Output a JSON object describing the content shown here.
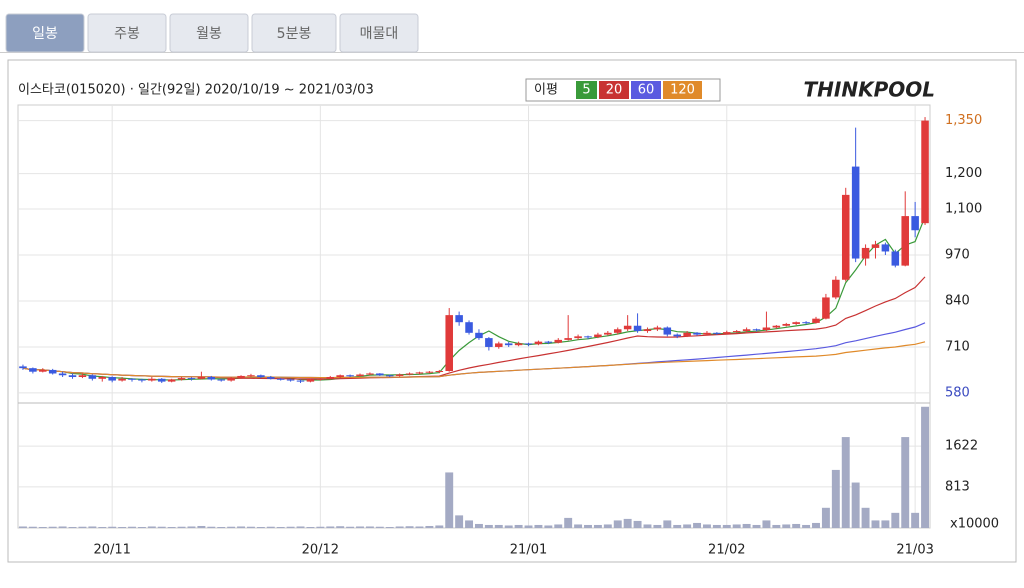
{
  "tabs": [
    "일봉",
    "주봉",
    "월봉",
    "5분봉",
    "매물대"
  ],
  "chart_data": {
    "type": "candlestick",
    "title": "이스타코(015020) · 일간(92일) 2020/10/19 ~ 2021/03/03",
    "logo": "THINKPOOL",
    "ma_label": "이평",
    "ma": [
      {
        "name": "5",
        "color": "#3a9a3a"
      },
      {
        "name": "20",
        "color": "#c83232"
      },
      {
        "name": "60",
        "color": "#5a5ae0"
      },
      {
        "name": "120",
        "color": "#e08a2a"
      }
    ],
    "up_color": "#e03a3a",
    "down_color": "#3a5ae0",
    "volume_color": "#a4aac4",
    "categories": [
      null,
      null,
      null,
      null,
      null,
      null,
      null,
      null,
      null,
      "20/11",
      null,
      null,
      null,
      null,
      null,
      null,
      null,
      null,
      null,
      null,
      null,
      null,
      null,
      null,
      null,
      null,
      null,
      null,
      null,
      null,
      "20/12",
      null,
      null,
      null,
      null,
      null,
      null,
      null,
      null,
      null,
      null,
      null,
      null,
      null,
      null,
      null,
      null,
      null,
      null,
      null,
      null,
      "21/01",
      null,
      null,
      null,
      null,
      null,
      null,
      null,
      null,
      null,
      null,
      null,
      null,
      null,
      null,
      null,
      null,
      null,
      null,
      null,
      "21/02",
      null,
      null,
      null,
      null,
      null,
      null,
      null,
      null,
      null,
      null,
      null,
      null,
      null,
      null,
      null,
      null,
      null,
      null,
      "21/03",
      null
    ],
    "candles": [
      [
        655,
        660,
        645,
        650
      ],
      [
        650,
        652,
        635,
        640
      ],
      [
        640,
        650,
        638,
        645
      ],
      [
        645,
        648,
        632,
        635
      ],
      [
        635,
        640,
        625,
        630
      ],
      [
        630,
        635,
        620,
        625
      ],
      [
        625,
        635,
        622,
        630
      ],
      [
        630,
        632,
        615,
        620
      ],
      [
        620,
        628,
        612,
        625
      ],
      [
        625,
        627,
        610,
        615
      ],
      [
        615,
        625,
        612,
        620
      ],
      [
        620,
        622,
        612,
        618
      ],
      [
        618,
        620,
        610,
        615
      ],
      [
        615,
        625,
        612,
        620
      ],
      [
        620,
        622,
        608,
        612
      ],
      [
        612,
        620,
        610,
        618
      ],
      [
        618,
        625,
        615,
        622
      ],
      [
        622,
        624,
        615,
        620
      ],
      [
        620,
        640,
        618,
        625
      ],
      [
        625,
        628,
        615,
        618
      ],
      [
        618,
        620,
        612,
        615
      ],
      [
        615,
        625,
        612,
        622
      ],
      [
        622,
        630,
        620,
        628
      ],
      [
        628,
        634,
        625,
        630
      ],
      [
        630,
        632,
        622,
        625
      ],
      [
        625,
        628,
        618,
        620
      ],
      [
        620,
        622,
        615,
        618
      ],
      [
        618,
        620,
        612,
        615
      ],
      [
        615,
        618,
        608,
        612
      ],
      [
        612,
        620,
        610,
        618
      ],
      [
        618,
        622,
        615,
        620
      ],
      [
        620,
        628,
        618,
        625
      ],
      [
        625,
        632,
        622,
        630
      ],
      [
        630,
        632,
        625,
        628
      ],
      [
        628,
        635,
        626,
        632
      ],
      [
        632,
        638,
        630,
        635
      ],
      [
        635,
        636,
        628,
        630
      ],
      [
        630,
        632,
        625,
        628
      ],
      [
        628,
        635,
        626,
        632
      ],
      [
        632,
        638,
        630,
        635
      ],
      [
        635,
        640,
        632,
        638
      ],
      [
        638,
        642,
        635,
        640
      ],
      [
        640,
        645,
        636,
        642
      ],
      [
        642,
        820,
        640,
        800
      ],
      [
        800,
        810,
        770,
        780
      ],
      [
        780,
        785,
        745,
        750
      ],
      [
        750,
        760,
        730,
        735
      ],
      [
        735,
        738,
        700,
        710
      ],
      [
        710,
        725,
        705,
        720
      ],
      [
        720,
        724,
        710,
        715
      ],
      [
        715,
        725,
        712,
        720
      ],
      [
        720,
        722,
        712,
        718
      ],
      [
        718,
        728,
        715,
        725
      ],
      [
        725,
        727,
        718,
        722
      ],
      [
        722,
        735,
        720,
        730
      ],
      [
        730,
        800,
        728,
        735
      ],
      [
        735,
        745,
        730,
        740
      ],
      [
        740,
        742,
        732,
        738
      ],
      [
        738,
        750,
        735,
        745
      ],
      [
        745,
        755,
        742,
        750
      ],
      [
        750,
        765,
        745,
        760
      ],
      [
        760,
        800,
        755,
        770
      ],
      [
        770,
        805,
        750,
        755
      ],
      [
        755,
        765,
        750,
        760
      ],
      [
        760,
        770,
        755,
        765
      ],
      [
        765,
        768,
        740,
        745
      ],
      [
        745,
        748,
        735,
        740
      ],
      [
        740,
        755,
        738,
        750
      ],
      [
        750,
        752,
        742,
        745
      ],
      [
        745,
        755,
        742,
        750
      ],
      [
        750,
        752,
        744,
        748
      ],
      [
        748,
        756,
        746,
        752
      ],
      [
        752,
        758,
        750,
        755
      ],
      [
        755,
        765,
        752,
        760
      ],
      [
        760,
        762,
        754,
        758
      ],
      [
        758,
        810,
        755,
        765
      ],
      [
        765,
        772,
        762,
        770
      ],
      [
        770,
        778,
        768,
        775
      ],
      [
        775,
        782,
        772,
        780
      ],
      [
        780,
        783,
        774,
        778
      ],
      [
        778,
        795,
        776,
        790
      ],
      [
        790,
        860,
        788,
        850
      ],
      [
        850,
        910,
        845,
        900
      ],
      [
        900,
        1160,
        895,
        1140
      ],
      [
        1220,
        1330,
        950,
        960
      ],
      [
        960,
        1000,
        940,
        990
      ],
      [
        990,
        1010,
        960,
        1000
      ],
      [
        1000,
        1005,
        970,
        980
      ],
      [
        980,
        985,
        935,
        940
      ],
      [
        940,
        1150,
        938,
        1080
      ],
      [
        1080,
        1120,
        1020,
        1040
      ],
      [
        1060,
        1360,
        1055,
        1350
      ]
    ],
    "volumes": [
      30,
      25,
      20,
      25,
      30,
      20,
      25,
      30,
      20,
      25,
      20,
      25,
      20,
      30,
      25,
      20,
      25,
      30,
      40,
      25,
      20,
      25,
      30,
      25,
      20,
      25,
      20,
      25,
      30,
      20,
      25,
      30,
      35,
      25,
      30,
      30,
      25,
      20,
      30,
      35,
      30,
      40,
      50,
      1100,
      250,
      150,
      80,
      60,
      60,
      50,
      60,
      50,
      60,
      50,
      70,
      200,
      70,
      60,
      60,
      70,
      150,
      180,
      140,
      70,
      60,
      150,
      60,
      70,
      100,
      70,
      60,
      60,
      70,
      80,
      60,
      150,
      60,
      70,
      80,
      60,
      100,
      400,
      1150,
      1800,
      900,
      400,
      150,
      150,
      300,
      1800,
      300,
      2400
    ],
    "ylim": [
      560,
      1380
    ],
    "yticks": [
      {
        "value": 1350,
        "label": "1,350"
      },
      {
        "value": 1200,
        "label": "1,200"
      },
      {
        "value": 1100,
        "label": "1,100"
      },
      970,
      840,
      710,
      580
    ],
    "vlim": [
      0,
      2435
    ],
    "vticks": [
      1622,
      813
    ],
    "volume_unit": "x10000",
    "grid": true
  }
}
